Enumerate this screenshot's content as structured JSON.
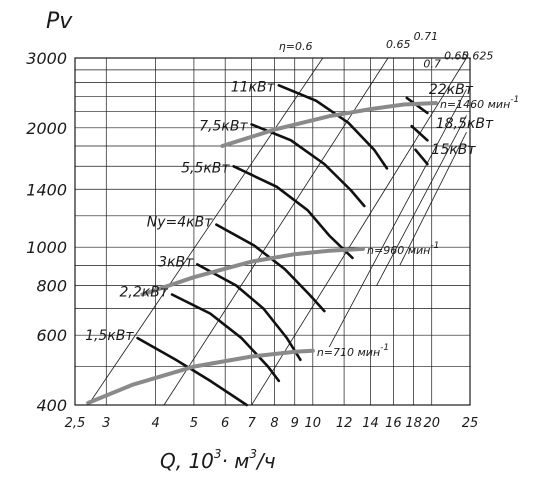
{
  "chart_data": {
    "type": "line",
    "title": "",
    "ylabel": "Pv",
    "xlabel": {
      "pre": "Q, 10",
      "exp": "3",
      "mid": "· м",
      "exp2": "3",
      "post": "/ч"
    },
    "xscale": "log",
    "yscale": "log",
    "xlim": [
      2.5,
      25
    ],
    "ylim": [
      400,
      3000
    ],
    "grid": true,
    "x_ticks": [
      "2,5",
      "3",
      "4",
      "5",
      "6",
      "7",
      "8",
      "9",
      "10",
      "12",
      "14",
      "16",
      "18",
      "20",
      "25"
    ],
    "x_tick_values": [
      2.5,
      3,
      4,
      5,
      6,
      7,
      8,
      9,
      10,
      12,
      14,
      16,
      18,
      20,
      25
    ],
    "y_ticks": [
      "3000",
      "2000",
      "1400",
      "1000",
      "800",
      "600",
      "400"
    ],
    "y_tick_values": [
      3000,
      2000,
      1400,
      1000,
      800,
      600,
      400
    ],
    "speed_curves": [
      {
        "label": "n=1460 мин",
        "exp": "-1",
        "points": [
          [
            5.9,
            1800
          ],
          [
            8,
            1980
          ],
          [
            11,
            2140
          ],
          [
            14,
            2230
          ],
          [
            17,
            2290
          ],
          [
            20.5,
            2310
          ]
        ]
      },
      {
        "label": "n=960 мин",
        "exp": "-1",
        "points": [
          [
            3.7,
            760
          ],
          [
            5,
            840
          ],
          [
            7,
            920
          ],
          [
            9,
            960
          ],
          [
            11,
            980
          ],
          [
            13.4,
            990
          ]
        ]
      },
      {
        "label": "n=710 мин",
        "exp": "-1",
        "points": [
          [
            2.7,
            405
          ],
          [
            3.5,
            450
          ],
          [
            5,
            500
          ],
          [
            7,
            530
          ],
          [
            9,
            545
          ],
          [
            10,
            548
          ]
        ]
      }
    ],
    "power_curves": [
      {
        "label": "1,5кВт",
        "points": [
          [
            3.6,
            590
          ],
          [
            4.5,
            520
          ],
          [
            5.5,
            460
          ],
          [
            6.8,
            400
          ]
        ]
      },
      {
        "label": "2,2кВт",
        "points": [
          [
            4.4,
            760
          ],
          [
            5.5,
            680
          ],
          [
            6.6,
            590
          ],
          [
            7.7,
            500
          ],
          [
            8.2,
            460
          ]
        ]
      },
      {
        "label": "3кВт",
        "points": [
          [
            5.1,
            905
          ],
          [
            6.4,
            800
          ],
          [
            7.5,
            700
          ],
          [
            8.6,
            590
          ],
          [
            9.3,
            520
          ]
        ]
      },
      {
        "label": "Ny=4кВт",
        "points": [
          [
            5.7,
            1140
          ],
          [
            7.1,
            1010
          ],
          [
            8.5,
            880
          ],
          [
            9.8,
            760
          ],
          [
            10.7,
            690
          ]
        ]
      },
      {
        "label": "5,5кВт",
        "points": [
          [
            6.3,
            1600
          ],
          [
            8.1,
            1420
          ],
          [
            9.7,
            1240
          ],
          [
            11,
            1070
          ],
          [
            12.6,
            940
          ]
        ]
      },
      {
        "label": "7,5кВт",
        "points": [
          [
            7,
            2040
          ],
          [
            8.8,
            1860
          ],
          [
            10.7,
            1620
          ],
          [
            12.5,
            1390
          ],
          [
            13.5,
            1270
          ]
        ]
      },
      {
        "label": "11кВт",
        "points": [
          [
            8.2,
            2560
          ],
          [
            10.2,
            2340
          ],
          [
            12.3,
            2060
          ],
          [
            14.3,
            1760
          ],
          [
            15.4,
            1580
          ]
        ]
      },
      {
        "label": "15кВт",
        "points": [
          [
            18.2,
            1760
          ],
          [
            19.5,
            1620
          ]
        ]
      },
      {
        "label": "18,5кВт",
        "points": [
          [
            17.8,
            2020
          ],
          [
            19.5,
            1860
          ]
        ]
      },
      {
        "label": "22кВт",
        "points": [
          [
            17.3,
            2380
          ],
          [
            19.5,
            2180
          ]
        ]
      }
    ],
    "efficiency_lines": [
      {
        "label": "η=0.6",
        "points": [
          [
            2.7,
            400
          ],
          [
            10.6,
            3000
          ]
        ]
      },
      {
        "label": "0.65",
        "points": [
          [
            4.2,
            400
          ],
          [
            15.5,
            3000
          ]
        ]
      },
      {
        "label": "0.71",
        "points": [
          [
            7,
            400
          ],
          [
            24.5,
            3000
          ]
        ]
      },
      {
        "label": "0.7",
        "points": [
          [
            11,
            560
          ],
          [
            24.5,
            2500
          ]
        ]
      },
      {
        "label": "0.65",
        "points": [
          [
            14.5,
            800
          ],
          [
            24.5,
            2150
          ]
        ]
      },
      {
        "label": "0.625",
        "points": [
          [
            16.6,
            900
          ],
          [
            24.5,
            1950
          ]
        ]
      }
    ]
  }
}
